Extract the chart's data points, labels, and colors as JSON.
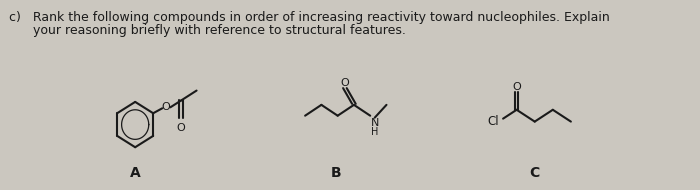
{
  "title_line1": "c)   Rank the following compounds in order of increasing reactivity toward nucleophiles. Explain",
  "title_line2": "      your reasoning briefly with reference to structural features.",
  "label_A": "A",
  "label_B": "B",
  "label_C": "C",
  "bg_color": "#cbc7bf",
  "text_color": "#1a1a1a",
  "title_fontsize": 9.0,
  "label_fontsize": 10,
  "struct_lw": 1.5
}
